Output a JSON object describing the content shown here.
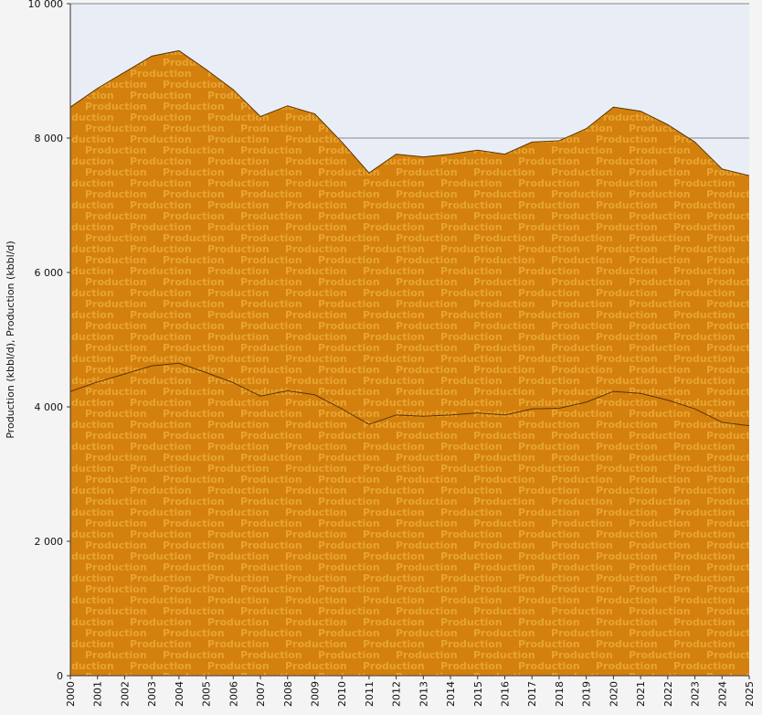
{
  "chart_data": {
    "type": "area",
    "stacked": true,
    "ylabel": "Production (kbbl/d), Production (kbbl/d)",
    "xlabel": "",
    "watermark_text": "Production",
    "x": [
      "2000",
      "2001",
      "2002",
      "2003",
      "2004",
      "2005",
      "2006",
      "2007",
      "2008",
      "2009",
      "2010",
      "2011",
      "2012",
      "2013",
      "2014",
      "2015",
      "2016",
      "2017",
      "2018",
      "2019",
      "2020",
      "2021",
      "2022",
      "2023",
      "2024",
      "2025"
    ],
    "series": [
      {
        "values": [
          4230,
          4370,
          4490,
          4610,
          4650,
          4510,
          4360,
          4160,
          4240,
          4180,
          3970,
          3740,
          3880,
          3860,
          3880,
          3910,
          3880,
          3970,
          3980,
          4070,
          4230,
          4200,
          4100,
          3970,
          3770,
          3720
        ],
        "color": "#d4800e"
      },
      {
        "values": [
          4230,
          4370,
          4490,
          4610,
          4650,
          4510,
          4360,
          4160,
          4240,
          4180,
          3970,
          3740,
          3880,
          3860,
          3880,
          3910,
          3880,
          3970,
          3980,
          4070,
          4230,
          4200,
          4100,
          3970,
          3770,
          3720
        ],
        "color": "#d4800e"
      }
    ],
    "ylim": [
      0,
      10000
    ],
    "yticks": [
      0,
      2000,
      4000,
      6000,
      8000,
      10000
    ],
    "ytick_labels": [
      "0",
      "2 000",
      "4 000",
      "6 000",
      "8 000",
      "10 000"
    ],
    "grid": true,
    "colors": {
      "plot_background": "#e9eef6",
      "area_fill": "#d4800e",
      "outline": "#5a3500",
      "gridline": "#888888",
      "watermark": "#e7a430"
    }
  }
}
